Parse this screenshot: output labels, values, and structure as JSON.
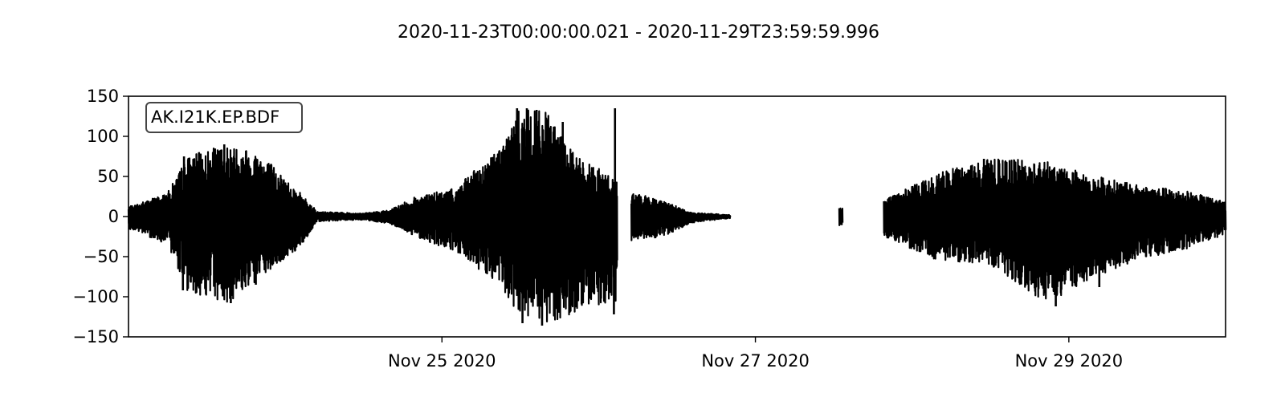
{
  "chart_data": {
    "type": "line",
    "title": "2020-11-23T00:00:00.021  -  2020-11-29T23:59:59.996",
    "xlabel": "",
    "ylabel": "",
    "x_start": "2020-11-23T00:00:00.021",
    "x_end": "2020-11-29T23:59:59.996",
    "xlim": [
      "2020-11-23T00:00:00",
      "2020-11-30T00:00:00"
    ],
    "ylim": [
      -150,
      150
    ],
    "yticks": [
      150,
      100,
      50,
      0,
      -50,
      -100,
      -150
    ],
    "ytick_labels": [
      "150",
      "100",
      "50",
      "0",
      "−50",
      "−100",
      "−150"
    ],
    "xticks": [
      "2020-11-25",
      "2020-11-27",
      "2020-11-29"
    ],
    "xtick_labels": [
      "Nov 25 2020",
      "Nov 27 2020",
      "Nov 29 2020"
    ],
    "grid": false,
    "legend_placement": "top-left",
    "series": [
      {
        "name": "AK.I21K.EP.BDF",
        "color": "#000000",
        "segments": [
          {
            "start": "2020-11-23T00:00:00",
            "end": "2020-11-24T05:00:00"
          },
          {
            "start": "2020-11-24T05:00:00",
            "end": "2020-11-26T02:50:00"
          },
          {
            "start": "2020-11-26T05:00:00",
            "end": "2020-11-26T20:10:00"
          },
          {
            "start": "2020-11-27T12:50:00",
            "end": "2020-11-27T13:20:00"
          },
          {
            "start": "2020-11-27T19:40:00",
            "end": "2020-11-30T00:00:00"
          }
        ],
        "envelope": [
          {
            "t": "2020-11-23T00:00:00",
            "max": 12,
            "min": -15
          },
          {
            "t": "2020-11-23T06:00:00",
            "max": 30,
            "min": -35
          },
          {
            "t": "2020-11-23T09:00:00",
            "max": 75,
            "min": -93
          },
          {
            "t": "2020-11-23T15:00:00",
            "max": 90,
            "min": -108
          },
          {
            "t": "2020-11-23T20:00:00",
            "max": 82,
            "min": -80
          },
          {
            "t": "2020-11-24T02:00:00",
            "max": 32,
            "min": -40
          },
          {
            "t": "2020-11-24T05:00:00",
            "max": 6,
            "min": -6
          },
          {
            "t": "2020-11-24T12:00:00",
            "max": 4,
            "min": -4
          },
          {
            "t": "2020-11-24T16:00:00",
            "max": 8,
            "min": -9
          },
          {
            "t": "2020-11-24T20:00:00",
            "max": 25,
            "min": -25
          },
          {
            "t": "2020-11-25T02:00:00",
            "max": 35,
            "min": -45
          },
          {
            "t": "2020-11-25T08:00:00",
            "max": 80,
            "min": -80
          },
          {
            "t": "2020-11-25T12:00:00",
            "max": 135,
            "min": -130
          },
          {
            "t": "2020-11-25T16:00:00",
            "max": 130,
            "min": -135
          },
          {
            "t": "2020-11-25T20:00:00",
            "max": 80,
            "min": -120
          },
          {
            "t": "2020-11-26T00:00:00",
            "max": 60,
            "min": -110
          },
          {
            "t": "2020-11-26T02:50:00",
            "max": 45,
            "min": -105
          },
          {
            "t": "2020-11-26T05:00:00",
            "max": 30,
            "min": -30
          },
          {
            "t": "2020-11-26T10:00:00",
            "max": 20,
            "min": -25
          },
          {
            "t": "2020-11-26T14:00:00",
            "max": 5,
            "min": -8
          },
          {
            "t": "2020-11-26T20:10:00",
            "max": 2,
            "min": -2
          },
          {
            "t": "2020-11-27T12:50:00",
            "max": 14,
            "min": -12
          },
          {
            "t": "2020-11-27T13:20:00",
            "max": 12,
            "min": -10
          },
          {
            "t": "2020-11-27T19:40:00",
            "max": 20,
            "min": -25
          },
          {
            "t": "2020-11-28T04:00:00",
            "max": 55,
            "min": -55
          },
          {
            "t": "2020-11-28T12:00:00",
            "max": 72,
            "min": -60
          },
          {
            "t": "2020-11-28T20:00:00",
            "max": 70,
            "min": -110
          },
          {
            "t": "2020-11-29T02:00:00",
            "max": 55,
            "min": -85
          },
          {
            "t": "2020-11-29T10:00:00",
            "max": 40,
            "min": -55
          },
          {
            "t": "2020-11-29T18:00:00",
            "max": 32,
            "min": -40
          },
          {
            "t": "2020-11-30T00:00:00",
            "max": 18,
            "min": -22
          }
        ],
        "spikes": [
          {
            "t": "2020-11-23T08:30:00",
            "v": 75
          },
          {
            "t": "2020-11-23T08:20:00",
            "v": -92
          },
          {
            "t": "2020-11-23T12:30:00",
            "v": 70
          },
          {
            "t": "2020-11-23T14:40:00",
            "v": 90
          },
          {
            "t": "2020-11-23T15:40:00",
            "v": -108
          },
          {
            "t": "2020-11-23T18:00:00",
            "v": 82
          },
          {
            "t": "2020-11-23T19:30:00",
            "v": -85
          },
          {
            "t": "2020-11-25T11:30:00",
            "v": 135
          },
          {
            "t": "2020-11-25T13:00:00",
            "v": 135
          },
          {
            "t": "2020-11-25T14:30:00",
            "v": 133
          },
          {
            "t": "2020-11-25T12:20:00",
            "v": -133
          },
          {
            "t": "2020-11-25T15:20:00",
            "v": -136
          },
          {
            "t": "2020-11-25T18:30:00",
            "v": 118
          },
          {
            "t": "2020-11-26T02:30:00",
            "v": 135
          },
          {
            "t": "2020-11-26T02:20:00",
            "v": -122
          },
          {
            "t": "2020-11-28T11:00:00",
            "v": 72
          },
          {
            "t": "2020-11-28T22:00:00",
            "v": -112
          },
          {
            "t": "2020-11-29T04:40:00",
            "v": -88
          }
        ]
      }
    ]
  }
}
